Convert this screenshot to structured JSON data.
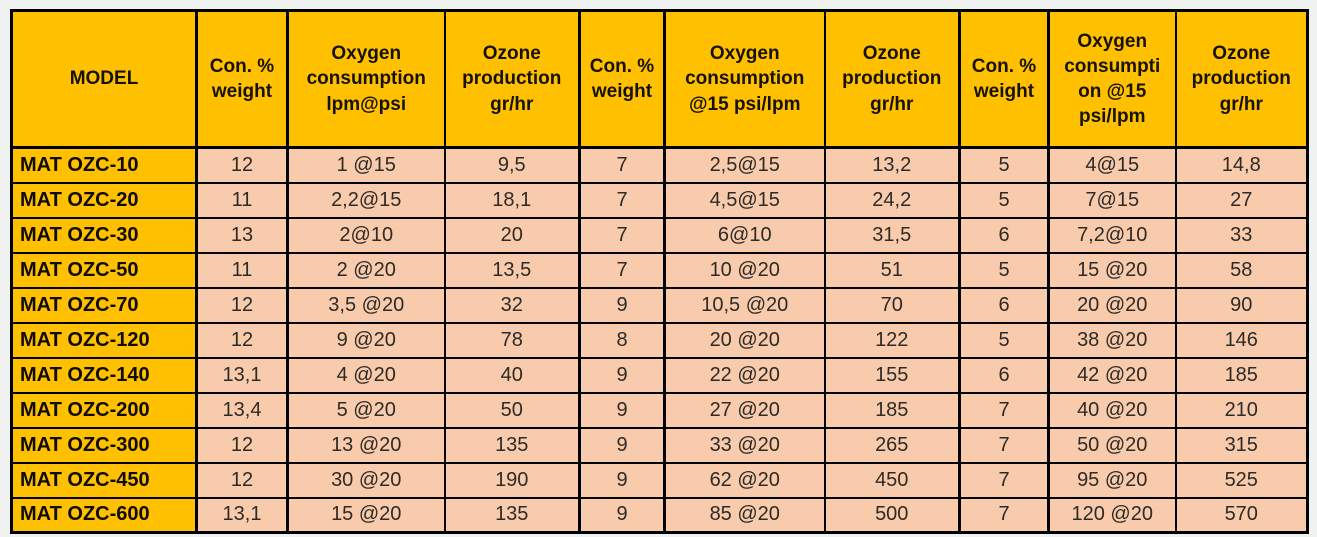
{
  "page": {
    "background_color": "#f0f1f1"
  },
  "table": {
    "name": "ozone-generator-specifications",
    "colors": {
      "header_bg": "#FFC000",
      "model_column_bg": "#FFC000",
      "data_cell_bg": "#F8CBAD",
      "border": "#000000"
    },
    "columns": [
      {
        "label": "MODEL",
        "width": 185
      },
      {
        "label": "Con. %\nweight",
        "width": 91
      },
      {
        "label": "Oxygen\nconsumption\nlpm@psi",
        "width": 157
      },
      {
        "label": "Ozone\nproduction\ngr/hr",
        "width": 135
      },
      {
        "label": "Con. %\nweight",
        "width": 85
      },
      {
        "label": "Oxygen\nconsumption\n@15 psi/lpm",
        "width": 160
      },
      {
        "label": "Ozone\nproduction\ngr/hr",
        "width": 135
      },
      {
        "label": "Con. %\nweight",
        "width": 89
      },
      {
        "label": "Oxygen\nconsumpti\non @15\npsi/lpm",
        "width": 127
      },
      {
        "label": "Ozone\nproduction\ngr/hr",
        "width": 132
      }
    ],
    "thick_border_columns": [
      1,
      4,
      7
    ],
    "rows": [
      {
        "model": "MAT OZC-10",
        "values": [
          "12",
          "1 @15",
          "9,5",
          "7",
          "2,5@15",
          "13,2",
          "5",
          "4@15",
          "14,8"
        ]
      },
      {
        "model": "MAT OZC-20",
        "values": [
          "11",
          "2,2@15",
          "18,1",
          "7",
          "4,5@15",
          "24,2",
          "5",
          "7@15",
          "27"
        ]
      },
      {
        "model": "MAT OZC-30",
        "values": [
          "13",
          "2@10",
          "20",
          "7",
          "6@10",
          "31,5",
          "6",
          "7,2@10",
          "33"
        ]
      },
      {
        "model": "MAT OZC-50",
        "values": [
          "11",
          "2 @20",
          "13,5",
          "7",
          "10 @20",
          "51",
          "5",
          "15 @20",
          "58"
        ]
      },
      {
        "model": "MAT OZC-70",
        "values": [
          "12",
          "3,5 @20",
          "32",
          "9",
          "10,5 @20",
          "70",
          "6",
          "20 @20",
          "90"
        ]
      },
      {
        "model": "MAT OZC-120",
        "values": [
          "12",
          "9 @20",
          "78",
          "8",
          "20 @20",
          "122",
          "5",
          "38 @20",
          "146"
        ]
      },
      {
        "model": "MAT OZC-140",
        "values": [
          "13,1",
          "4 @20",
          "40",
          "9",
          "22 @20",
          "155",
          "6",
          "42 @20",
          "185"
        ]
      },
      {
        "model": "MAT OZC-200",
        "values": [
          "13,4",
          "5 @20",
          "50",
          "9",
          "27 @20",
          "185",
          "7",
          "40 @20",
          "210"
        ]
      },
      {
        "model": "MAT OZC-300",
        "values": [
          "12",
          "13 @20",
          "135",
          "9",
          "33 @20",
          "265",
          "7",
          "50 @20",
          "315"
        ]
      },
      {
        "model": "MAT OZC-450",
        "values": [
          "12",
          "30 @20",
          "190",
          "9",
          "62 @20",
          "450",
          "7",
          "95 @20",
          "525"
        ]
      },
      {
        "model": "MAT OZC-600",
        "values": [
          "13,1",
          "15 @20",
          "135",
          "9",
          "85 @20",
          "500",
          "7",
          "120 @20",
          "570"
        ]
      }
    ]
  }
}
